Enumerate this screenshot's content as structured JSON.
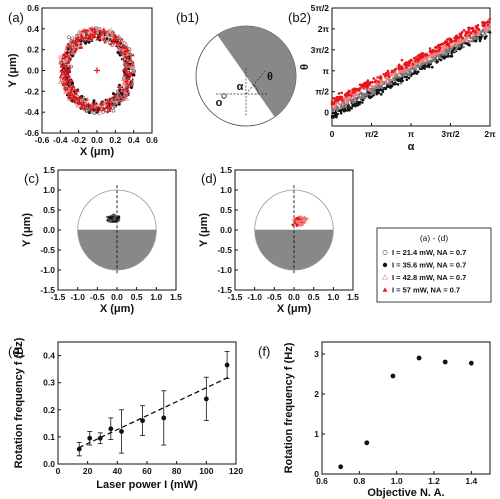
{
  "colors": {
    "black": "#111111",
    "red": "#e8141c",
    "pink": "#f08080",
    "gray": "#7a7a7a",
    "shade": "#888888"
  },
  "chart_data": [
    {
      "id": "a",
      "panel_label": "(a)",
      "type": "scatter",
      "xlabel": "X (μm)",
      "ylabel": "Y (μm)",
      "xlim": [
        -0.6,
        0.6
      ],
      "ylim": [
        -0.6,
        0.6
      ],
      "xticks": [
        "-0.6",
        "-0.4",
        "-0.2",
        "0.0",
        "0.2",
        "0.4",
        "0.6"
      ],
      "yticks": [
        "-0.6",
        "-0.4",
        "-0.2",
        "0.0",
        "0.2",
        "0.4",
        "0.6"
      ],
      "ring": {
        "radius_inner": 0.3,
        "radius_outer": 0.4,
        "center": [
          0,
          0
        ]
      },
      "series": [
        {
          "name": "I = 21.4 mW, NA = 0.7",
          "marker": "open-circle",
          "color": "#555555"
        },
        {
          "name": "I = 35.6 mW, NA = 0.7",
          "marker": "filled-circle",
          "color": "#111111"
        },
        {
          "name": "I = 42.8 mW, NA = 0.7",
          "marker": "open-triangle",
          "color": "#f08080"
        },
        {
          "name": "I = 57 mW, NA = 0.7",
          "marker": "filled-triangle",
          "color": "#e8141c"
        }
      ]
    },
    {
      "id": "b1",
      "panel_label": "(b1)",
      "type": "diagram",
      "labels": {
        "alpha": "α",
        "theta": "θ",
        "origin": "o"
      }
    },
    {
      "id": "b2",
      "panel_label": "(b2)",
      "type": "scatter",
      "xlabel": "α",
      "ylabel": "θ",
      "xlim": [
        0,
        6.2832
      ],
      "ylim": [
        -1.0,
        7.854
      ],
      "xticks": [
        {
          "v": 0,
          "t": "0"
        },
        {
          "v": 1.5708,
          "t": "π/2"
        },
        {
          "v": 3.1416,
          "t": "π"
        },
        {
          "v": 4.7124,
          "t": "3π/2"
        },
        {
          "v": 6.2832,
          "t": "2π"
        }
      ],
      "yticks": [
        {
          "v": 0,
          "t": "0"
        },
        {
          "v": 1.5708,
          "t": "π/2"
        },
        {
          "v": 3.1416,
          "t": "π"
        },
        {
          "v": 4.7124,
          "t": "3π/2"
        },
        {
          "v": 6.2832,
          "t": "2π"
        },
        {
          "v": 7.854,
          "t": "5π/2"
        }
      ],
      "series": [
        {
          "name": "black",
          "color": "#111111",
          "line": {
            "x0": 0,
            "y0": -0.25,
            "x1": 6.2832,
            "y1": 6.05
          }
        },
        {
          "name": "gray",
          "color": "#7a7a7a",
          "line": {
            "x0": 0,
            "y0": 0.15,
            "x1": 6.2832,
            "y1": 6.3
          }
        },
        {
          "name": "pink",
          "color": "#f08080",
          "line": {
            "x0": 0,
            "y0": 0.55,
            "x1": 6.2832,
            "y1": 6.55
          }
        },
        {
          "name": "red",
          "color": "#e8141c",
          "line": {
            "x0": 0,
            "y0": 0.8,
            "x1": 6.2832,
            "y1": 6.85
          }
        }
      ]
    },
    {
      "id": "c",
      "panel_label": "(c)",
      "type": "scatter",
      "xlabel": "X (μm)",
      "ylabel": "Y (μm)",
      "xlim": [
        -1.5,
        1.5
      ],
      "ylim": [
        -1.5,
        1.5
      ],
      "xticks": [
        "-1.5",
        "-1.0",
        "-0.5",
        "0.0",
        "0.5",
        "1.0",
        "1.5"
      ],
      "yticks": [
        "-1.5",
        "-1.0",
        "-0.5",
        "0.0",
        "0.5",
        "1.0",
        "1.5"
      ],
      "circle_radius": 1.0,
      "cluster": {
        "center": [
          -0.08,
          0.28
        ],
        "spread": [
          0.1,
          0.05
        ]
      },
      "colors": [
        "#111111",
        "#555555"
      ]
    },
    {
      "id": "d",
      "panel_label": "(d)",
      "type": "scatter",
      "xlabel": "X (μm)",
      "ylabel": "Y (μm)",
      "xlim": [
        -1.5,
        1.5
      ],
      "ylim": [
        -1.5,
        1.5
      ],
      "xticks": [
        "-1.5",
        "-1.0",
        "-0.5",
        "0.0",
        "0.5",
        "1.0",
        "1.5"
      ],
      "yticks": [
        "-1.5",
        "-1.0",
        "-0.5",
        "0.0",
        "0.5",
        "1.0",
        "1.5"
      ],
      "circle_radius": 1.0,
      "cluster": {
        "center": [
          0.15,
          0.22
        ],
        "spread": [
          0.11,
          0.07
        ]
      },
      "colors": [
        "#e8141c",
        "#f08080"
      ]
    },
    {
      "id": "legend",
      "type": "legend",
      "title": "(a) - (d)",
      "entries": [
        {
          "marker": "open-circle",
          "label": "I = 21.4 mW, NA = 0.7",
          "color": "#555555"
        },
        {
          "marker": "filled-circle",
          "label": "I = 35.6 mW, NA = 0.7",
          "color": "#111111"
        },
        {
          "marker": "open-triangle",
          "label": "I = 42.8 mW, NA = 0.7",
          "color": "#f08080"
        },
        {
          "marker": "filled-triangle",
          "label": "I = 57 mW, NA = 0.7",
          "color": "#e8141c"
        }
      ]
    },
    {
      "id": "e",
      "panel_label": "(e)",
      "type": "scatter",
      "xlabel": "Laser power I (mW)",
      "ylabel": "Rotation frequency f (Hz)",
      "xlim": [
        0,
        120
      ],
      "ylim": [
        0.0,
        0.45
      ],
      "xticks": [
        "0",
        "20",
        "40",
        "60",
        "80",
        "100",
        "120"
      ],
      "yticks": [
        "0.0",
        "0.1",
        "0.2",
        "0.3",
        "0.4"
      ],
      "points": [
        {
          "x": 14.3,
          "y": 0.055,
          "err": 0.025
        },
        {
          "x": 21.4,
          "y": 0.095,
          "err": 0.025
        },
        {
          "x": 28.5,
          "y": 0.095,
          "err": 0.02
        },
        {
          "x": 35.6,
          "y": 0.13,
          "err": 0.04
        },
        {
          "x": 42.8,
          "y": 0.12,
          "err": 0.08
        },
        {
          "x": 57,
          "y": 0.16,
          "err": 0.055
        },
        {
          "x": 71.3,
          "y": 0.17,
          "err": 0.1
        },
        {
          "x": 100,
          "y": 0.24,
          "err": 0.08
        },
        {
          "x": 114,
          "y": 0.365,
          "err": 0.05
        }
      ],
      "fit": {
        "x0": 14,
        "y0": 0.06,
        "x1": 115,
        "y1": 0.32
      }
    },
    {
      "id": "f",
      "panel_label": "(f)",
      "type": "scatter",
      "xlabel": "Objective N. A.",
      "ylabel": "Rotation frequency f (Hz)",
      "xlim": [
        0.6,
        1.5
      ],
      "ylim": [
        0,
        3.3
      ],
      "xticks": [
        "0.6",
        "0.8",
        "1.0",
        "1.2",
        "1.4"
      ],
      "yticks": [
        "0",
        "1",
        "2",
        "3"
      ],
      "points": [
        {
          "x": 0.7,
          "y": 0.18
        },
        {
          "x": 0.84,
          "y": 0.78
        },
        {
          "x": 0.98,
          "y": 2.45
        },
        {
          "x": 1.12,
          "y": 2.9
        },
        {
          "x": 1.26,
          "y": 2.8
        },
        {
          "x": 1.4,
          "y": 2.77
        }
      ]
    }
  ]
}
